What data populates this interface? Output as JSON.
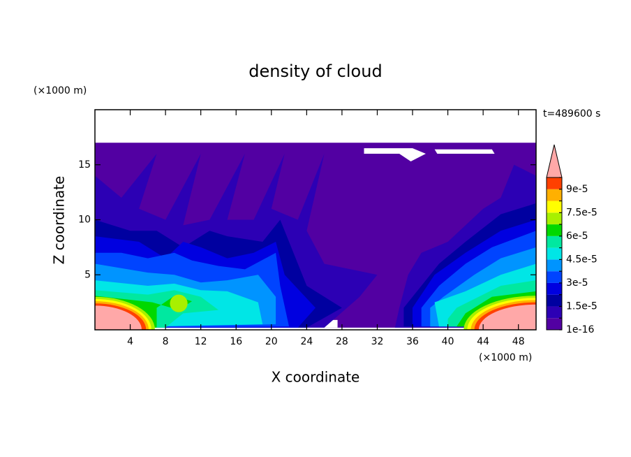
{
  "chart_data": {
    "type": "contour",
    "title": "density of cloud",
    "x_label": "X coordinate",
    "y_label": "Z coordinate",
    "x_unit": "(×1000 m)",
    "y_unit": "(×1000 m)",
    "annotation": "t=489600 s",
    "xlim": [
      0,
      50
    ],
    "xticks": [
      4,
      8,
      12,
      16,
      20,
      24,
      28,
      32,
      36,
      40,
      44,
      48
    ],
    "ylim": [
      0,
      20
    ],
    "yticks": [
      5,
      10,
      15
    ],
    "colorbar": {
      "levels": [
        1e-16,
        7.5e-06,
        1.5e-05,
        2.25e-05,
        3e-05,
        3.75e-05,
        4.5e-05,
        5.25e-05,
        6e-05,
        6.75e-05,
        7.5e-05,
        8.25e-05,
        9e-05,
        9.75e-05
      ],
      "colors": [
        "#5200a2",
        "#2c00b4",
        "#0000a0",
        "#0000e0",
        "#0044ff",
        "#0094ff",
        "#00e6e6",
        "#00e8a0",
        "#00d800",
        "#a8f000",
        "#ffff00",
        "#ffb000",
        "#ff4000"
      ],
      "extend_color": "#ffa8a8",
      "ticks": [
        1e-16,
        {
          "value": 1.5e-05,
          "label": "1.5e-5"
        },
        {
          "value": 3e-05,
          "label": "3e-5"
        },
        {
          "value": 4.5e-05,
          "label": "4.5e-5"
        },
        {
          "value": 6e-05,
          "label": "6e-5"
        },
        {
          "value": 7.5e-05,
          "label": "7.5e-5"
        },
        {
          "value": 9e-05,
          "label": "9e-5"
        }
      ]
    }
  }
}
